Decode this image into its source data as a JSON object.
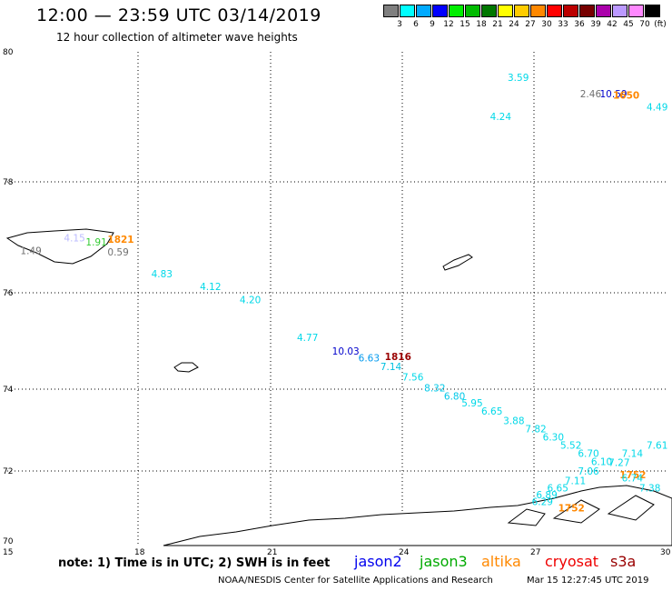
{
  "header": {
    "title": "12:00 — 23:59 UTC 03/14/2019",
    "subtitle": "12 hour collection of altimeter wave heights"
  },
  "legend": {
    "unit": "(ft)",
    "items": [
      {
        "label": "3",
        "color": "#7f7f7f"
      },
      {
        "label": "6",
        "color": "#00ffff"
      },
      {
        "label": "9",
        "color": "#00aaff"
      },
      {
        "label": "12",
        "color": "#0000ff"
      },
      {
        "label": "15",
        "color": "#00ee00"
      },
      {
        "label": "18",
        "color": "#00bb00"
      },
      {
        "label": "21",
        "color": "#007700"
      },
      {
        "label": "24",
        "color": "#ffff00"
      },
      {
        "label": "27",
        "color": "#ffcc00"
      },
      {
        "label": "30",
        "color": "#ff8800"
      },
      {
        "label": "33",
        "color": "#ff0000"
      },
      {
        "label": "36",
        "color": "#bb0000"
      },
      {
        "label": "39",
        "color": "#770000"
      },
      {
        "label": "42",
        "color": "#aa00aa"
      },
      {
        "label": "45",
        "color": "#bb99ff"
      },
      {
        "label": "70",
        "color": "#ff88ff"
      },
      {
        "label": "",
        "color": "#000000"
      }
    ]
  },
  "axes": {
    "lon_ticks": [
      "15",
      "18",
      "21",
      "24",
      "27",
      "30"
    ],
    "lat_ticks": [
      "70",
      "72",
      "74",
      "76",
      "78",
      "80"
    ]
  },
  "observations": [
    {
      "text": "3.59",
      "color": "#00d8e8",
      "lon": 26.4,
      "lat": 79.55
    },
    {
      "text": "2.46",
      "color": "#707070",
      "lon": 28.05,
      "lat": 79.3
    },
    {
      "text": "10.59",
      "color": "#0000cc",
      "lon": 28.5,
      "lat": 79.3
    },
    {
      "text": "1650",
      "color": "#ff8800",
      "lon": 28.8,
      "lat": 79.28
    },
    {
      "text": "4.49",
      "color": "#00d8e8",
      "lon": 29.7,
      "lat": 79.1
    },
    {
      "text": "4.24",
      "color": "#00d8e8",
      "lon": 26.0,
      "lat": 78.95
    },
    {
      "text": "4.15",
      "color": "#bbbbff",
      "lon": 16.3,
      "lat": 76.93
    },
    {
      "text": "1.91",
      "color": "#33cc33",
      "lon": 16.8,
      "lat": 76.85
    },
    {
      "text": "1821",
      "color": "#ff8800",
      "lon": 17.3,
      "lat": 76.9
    },
    {
      "text": "1.49",
      "color": "#707070",
      "lon": 15.3,
      "lat": 76.7
    },
    {
      "text": "0.59",
      "color": "#707070",
      "lon": 17.3,
      "lat": 76.67
    },
    {
      "text": "4.83",
      "color": "#00d8e8",
      "lon": 18.3,
      "lat": 76.28
    },
    {
      "text": "4.12",
      "color": "#00d8e8",
      "lon": 19.4,
      "lat": 76.05
    },
    {
      "text": "4.20",
      "color": "#00d8e8",
      "lon": 20.3,
      "lat": 75.78
    },
    {
      "text": "4.77",
      "color": "#00d8e8",
      "lon": 21.6,
      "lat": 75.0
    },
    {
      "text": "10.03",
      "color": "#0000cc",
      "lon": 22.4,
      "lat": 74.72
    },
    {
      "text": "1816",
      "color": "#990000",
      "lon": 23.6,
      "lat": 74.6
    },
    {
      "text": "6.63",
      "color": "#0099ee",
      "lon": 23.0,
      "lat": 74.58
    },
    {
      "text": "7.14",
      "color": "#00c0e0",
      "lon": 23.5,
      "lat": 74.4
    },
    {
      "text": "7.56",
      "color": "#00d8e8",
      "lon": 24.0,
      "lat": 74.18
    },
    {
      "text": "8.32",
      "color": "#00c8e8",
      "lon": 24.5,
      "lat": 73.95
    },
    {
      "text": "6.80",
      "color": "#00c8e8",
      "lon": 24.95,
      "lat": 73.75
    },
    {
      "text": "5.95",
      "color": "#00d8e8",
      "lon": 25.35,
      "lat": 73.58
    },
    {
      "text": "6.65",
      "color": "#00d8e8",
      "lon": 25.8,
      "lat": 73.38
    },
    {
      "text": "3.88",
      "color": "#00d8e8",
      "lon": 26.3,
      "lat": 73.15
    },
    {
      "text": "7.82",
      "color": "#00d8e8",
      "lon": 26.8,
      "lat": 72.95
    },
    {
      "text": "6.30",
      "color": "#00d8e8",
      "lon": 27.2,
      "lat": 72.75
    },
    {
      "text": "5.52",
      "color": "#00d8e8",
      "lon": 27.6,
      "lat": 72.55
    },
    {
      "text": "6.70",
      "color": "#00d8e8",
      "lon": 28.0,
      "lat": 72.35
    },
    {
      "text": "7.61",
      "color": "#00d8e8",
      "lon": 29.65,
      "lat": 72.55
    },
    {
      "text": "7.14",
      "color": "#00d8e8",
      "lon": 29.0,
      "lat": 72.35
    },
    {
      "text": "6.10",
      "color": "#00d8e8",
      "lon": 28.3,
      "lat": 72.15
    },
    {
      "text": "7.27",
      "color": "#00d8e8",
      "lon": 28.7,
      "lat": 72.12
    },
    {
      "text": "1752",
      "color": "#ff8800",
      "lon": 28.95,
      "lat": 71.8
    },
    {
      "text": "6.74",
      "color": "#00d8e8",
      "lon": 29.0,
      "lat": 71.72
    },
    {
      "text": "7.38",
      "color": "#00d8e8",
      "lon": 29.4,
      "lat": 71.45
    },
    {
      "text": "7.06",
      "color": "#00d8e8",
      "lon": 28.0,
      "lat": 71.9
    },
    {
      "text": "7.11",
      "color": "#00d8e8",
      "lon": 27.7,
      "lat": 71.65
    },
    {
      "text": "6.65",
      "color": "#00d8e8",
      "lon": 27.3,
      "lat": 71.45
    },
    {
      "text": "6.89",
      "color": "#00d8e8",
      "lon": 27.05,
      "lat": 71.27
    },
    {
      "text": "6.29",
      "color": "#00d8e8",
      "lon": 26.95,
      "lat": 71.08
    },
    {
      "text": "1752",
      "color": "#ff8800",
      "lon": 27.55,
      "lat": 70.92
    }
  ],
  "footer": {
    "note": "note:  1) Time is in UTC;  2) SWH is in feet",
    "satellites": [
      {
        "name": "jason2",
        "color": "#0000ee"
      },
      {
        "name": "jason3",
        "color": "#00aa00"
      },
      {
        "name": "altika",
        "color": "#ff8800"
      },
      {
        "name": "cryosat",
        "color": "#ee0000"
      },
      {
        "name": "s3a",
        "color": "#990000"
      }
    ],
    "credit": "NOAA/NESDIS Center for Satellite Applications and Research",
    "timestamp": "Mar 15 12:27:45 UTC 2019"
  }
}
